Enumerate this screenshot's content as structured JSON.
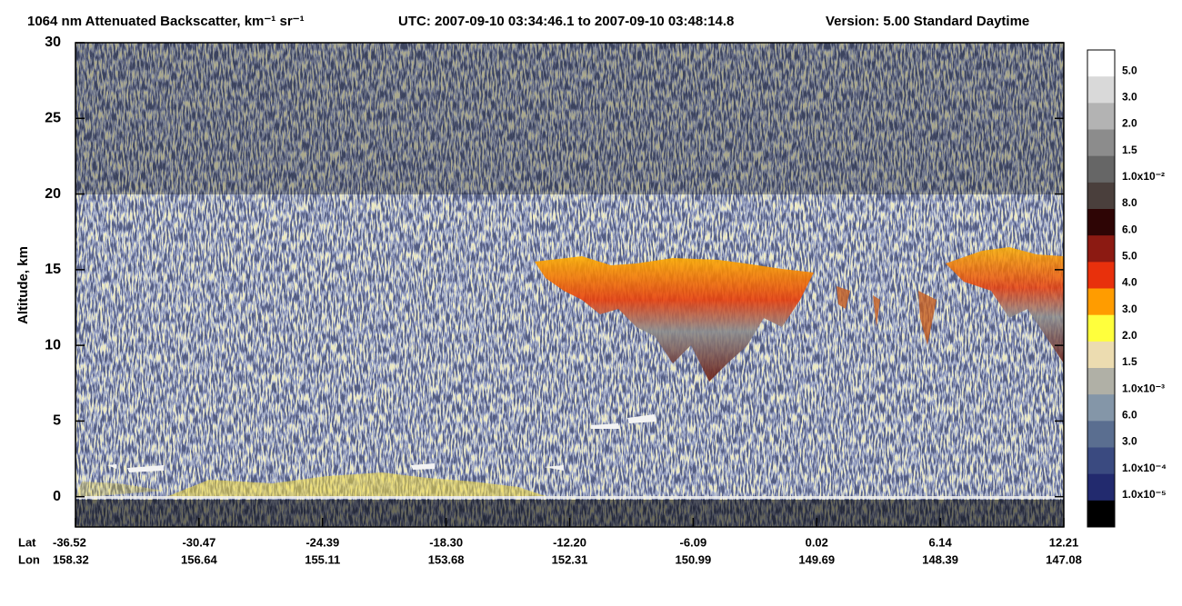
{
  "chart_data": {
    "type": "heatmap",
    "title": "1064 nm Attenuated Backscatter, km⁻¹ sr⁻¹",
    "time_range": "UTC:  2007-09-10 03:34:46.1  to  2007-09-10 03:48:14.8",
    "version": "Version: 5.00  Standard  Daytime",
    "y_label": "Altitude, km",
    "ylim": [
      -2,
      30
    ],
    "yticks": [
      0,
      5,
      10,
      15,
      20,
      25,
      30
    ],
    "x_row_labels": [
      "Lat",
      "Lon"
    ],
    "lat": [
      "-36.52",
      "-30.47",
      "-24.39",
      "-18.30",
      "-12.20",
      "-6.09",
      "0.02",
      "6.14",
      "12.21"
    ],
    "lon": [
      "158.32",
      "156.64",
      "155.11",
      "153.68",
      "152.31",
      "150.99",
      "149.69",
      "148.39",
      "147.08"
    ],
    "colorbar": {
      "colors": [
        "#ffffff",
        "#d9d9d9",
        "#b3b3b3",
        "#8c8c8c",
        "#666666",
        "#4a3f3c",
        "#2e0505",
        "#8c1a12",
        "#e8300c",
        "#ff9c00",
        "#ffff3c",
        "#ecdcb0",
        "#b0b0a6",
        "#8496a8",
        "#5a6e90",
        "#3a4a80",
        "#222a6e",
        "#000000"
      ],
      "labels": [
        "5.0",
        "3.0",
        "2.0",
        "1.5",
        "1.0x10⁻²",
        "8.0",
        "6.0",
        "5.0",
        "4.0",
        "3.0",
        "2.0",
        "1.5",
        "1.0x10⁻³",
        "6.0",
        "3.0",
        "1.0x10⁻⁴",
        "1.0x10⁻⁵"
      ]
    }
  }
}
